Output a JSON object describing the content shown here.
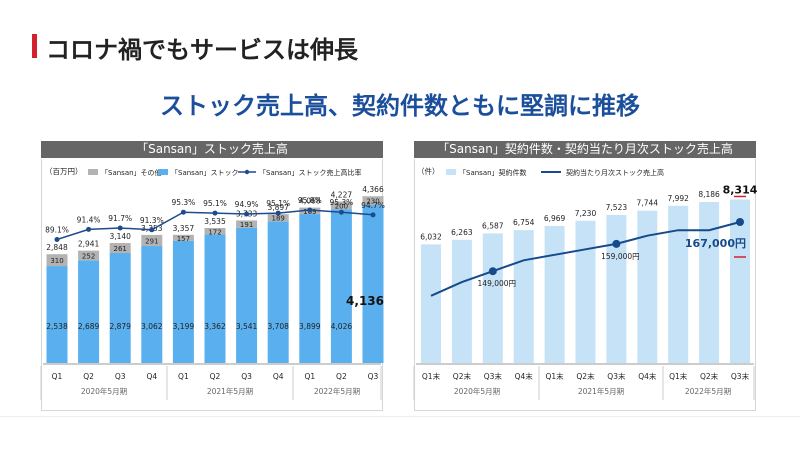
{
  "page": {
    "title": "コロナ禍でもサービスは伸長",
    "headline": "ストック売上高、契約件数ともに堅調に推移"
  },
  "colors": {
    "accent": "#d3212d",
    "headline": "#1b4f9c",
    "bar_stock": "#5ab0ee",
    "bar_other": "#b3b3b3",
    "ratio_line": "#1d4b8c",
    "contract_bar": "#c6e2f7",
    "monthly_line": "#174a8b"
  },
  "chart_data": [
    {
      "type": "bar",
      "stacked": true,
      "title": "「Sansan」ストック売上高",
      "unit_label": "（百万円）",
      "categories": [
        "Q1",
        "Q2",
        "Q3",
        "Q4",
        "Q1",
        "Q2",
        "Q3",
        "Q4",
        "Q1",
        "Q2",
        "Q3"
      ],
      "fiscal_years": [
        "2020年5月期",
        "2021年5月期",
        "2022年5月期"
      ],
      "series": [
        {
          "name": "「Sansan」ストック",
          "values": [
            2538,
            2689,
            2879,
            3062,
            3199,
            3362,
            3541,
            3708,
            3899,
            4026,
            4136
          ]
        },
        {
          "name": "「Sansan」その他",
          "values": [
            310,
            252,
            261,
            291,
            157,
            172,
            191,
            189,
            169,
            200,
            230
          ]
        }
      ],
      "totals": [
        2848,
        2941,
        3140,
        3353,
        3357,
        3535,
        3733,
        3897,
        4068,
        4227,
        4366
      ],
      "line_series": {
        "name": "「Sansan」ストック売上高比率",
        "values": [
          89.1,
          91.4,
          91.7,
          91.3,
          95.3,
          95.1,
          94.9,
          95.1,
          95.8,
          95.3,
          94.7
        ]
      },
      "stock_labels": [
        "2,538",
        "2,689",
        "2,879",
        "3,062",
        "3,199",
        "3,362",
        "3,541",
        "3,708",
        "3,899",
        "4,026",
        "4,136"
      ],
      "other_labels": [
        "310",
        "252",
        "261",
        "291",
        "157",
        "172",
        "191",
        "189",
        "169",
        "200",
        "230"
      ],
      "total_labels": [
        "2,848",
        "2,941",
        "3,140",
        "3,353",
        "3,357",
        "3,535",
        "3,733",
        "3,897",
        "4,068",
        "4,227",
        "4,366"
      ],
      "ratio_labels": [
        "89.1%",
        "91.4%",
        "91.7%",
        "91.3%",
        "95.3%",
        "95.1%",
        "94.9%",
        "95.1%",
        "95.8%",
        "95.3%",
        "94.7%"
      ],
      "ylim": [
        0,
        4600
      ]
    },
    {
      "type": "bar",
      "title": "「Sansan」契約件数・契約当たり月次ストック売上高",
      "unit_label": "（件）",
      "categories": [
        "Q1末",
        "Q2末",
        "Q3末",
        "Q4末",
        "Q1末",
        "Q2末",
        "Q3末",
        "Q4末",
        "Q1末",
        "Q2末",
        "Q3末"
      ],
      "fiscal_years": [
        "2020年5月期",
        "2021年5月期",
        "2022年5月期"
      ],
      "series": [
        {
          "name": "「Sansan」契約件数",
          "values": [
            6032,
            6263,
            6587,
            6754,
            6969,
            7230,
            7523,
            7744,
            7992,
            8186,
            8314
          ]
        }
      ],
      "bar_labels": [
        "6,032",
        "6,263",
        "6,587",
        "6,754",
        "6,969",
        "7,230",
        "7,523",
        "7,744",
        "7,992",
        "8,186",
        "8,314"
      ],
      "line_series": {
        "name": "契約当たり月次ストック売上高",
        "values": [
          140000,
          145000,
          149000,
          153000,
          155000,
          157000,
          159000,
          162000,
          164000,
          164000,
          167000
        ],
        "marked_points": [
          {
            "index": 2,
            "label": "149,000円"
          },
          {
            "index": 6,
            "label": "159,000円"
          },
          {
            "index": 10,
            "label": "167,000円"
          }
        ]
      },
      "ylim": [
        0,
        9000
      ]
    }
  ]
}
